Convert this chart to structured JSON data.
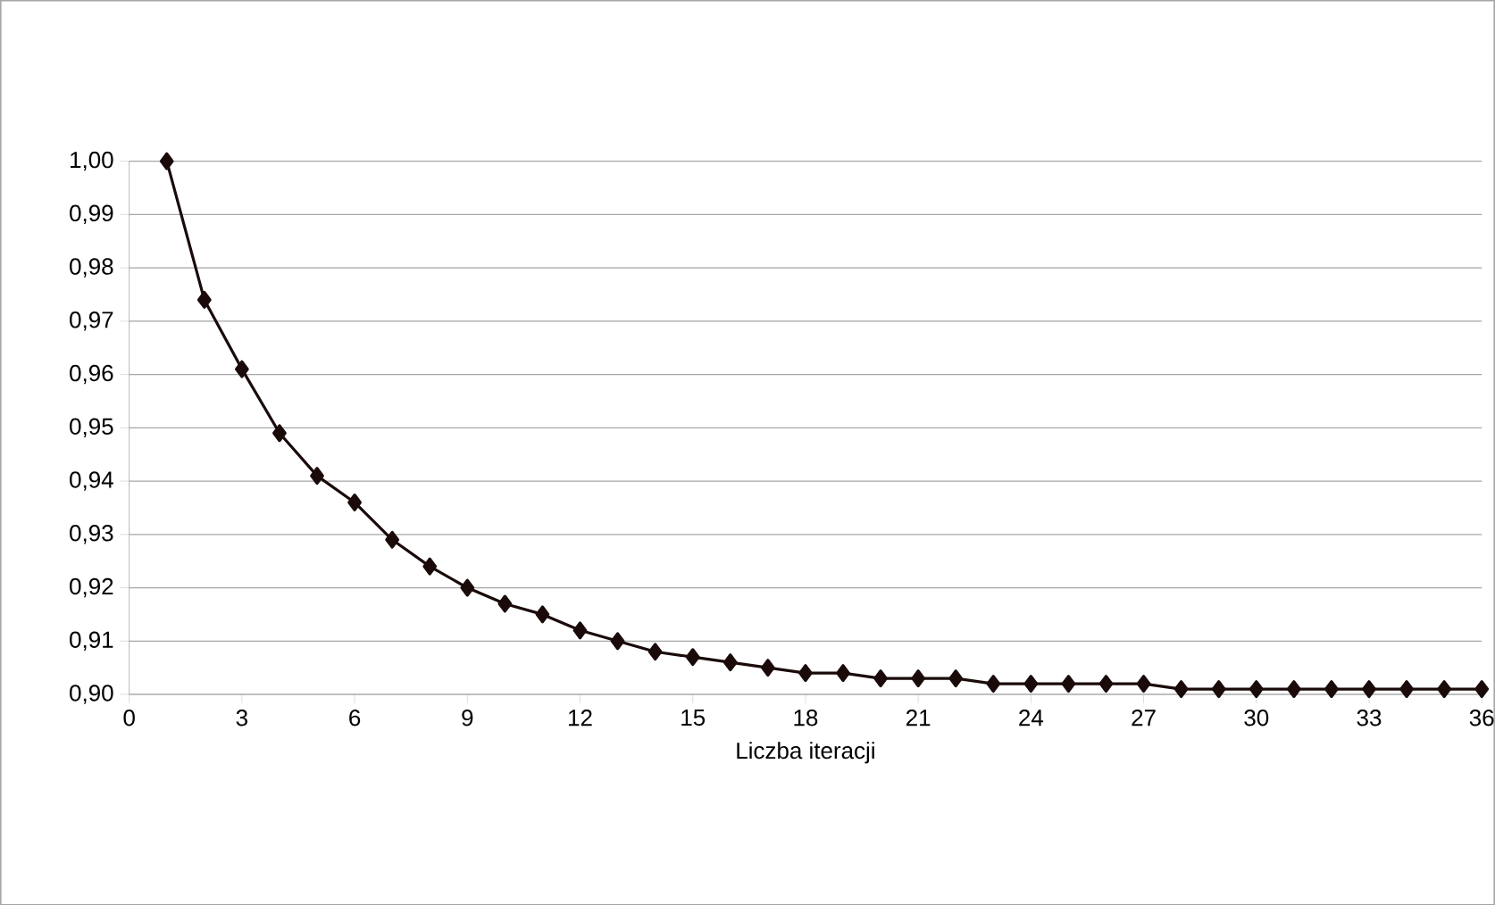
{
  "chart_data": {
    "type": "line",
    "xlabel": "Liczba iteracji",
    "x": [
      1,
      2,
      3,
      4,
      5,
      6,
      7,
      8,
      9,
      10,
      11,
      12,
      13,
      14,
      15,
      16,
      17,
      18,
      19,
      20,
      21,
      22,
      23,
      24,
      25,
      26,
      27,
      28,
      29,
      30,
      31,
      32,
      33,
      34,
      35,
      36
    ],
    "series": [
      {
        "color": "#1a0a0a",
        "values": [
          1.0,
          0.974,
          0.961,
          0.949,
          0.941,
          0.936,
          0.929,
          0.924,
          0.92,
          0.917,
          0.915,
          0.912,
          0.91,
          0.908,
          0.907,
          0.906,
          0.905,
          0.904,
          0.904,
          0.903,
          0.903,
          0.903,
          0.902,
          0.902,
          0.902,
          0.902,
          0.902,
          0.901,
          0.901,
          0.901,
          0.901,
          0.901,
          0.901,
          0.901,
          0.901,
          0.901
        ]
      }
    ],
    "xlim": [
      0,
      36
    ],
    "ylim": [
      0.9,
      1.0
    ],
    "xticks": [
      0,
      3,
      6,
      9,
      12,
      15,
      18,
      21,
      24,
      27,
      30,
      33,
      36
    ],
    "yticks": [
      {
        "value": 0.9,
        "label": "0,90"
      },
      {
        "value": 0.91,
        "label": "0,91"
      },
      {
        "value": 0.92,
        "label": "0,92"
      },
      {
        "value": 0.93,
        "label": "0,93"
      },
      {
        "value": 0.94,
        "label": "0,94"
      },
      {
        "value": 0.95,
        "label": "0,95"
      },
      {
        "value": 0.96,
        "label": "0,96"
      },
      {
        "value": 0.97,
        "label": "0,97"
      },
      {
        "value": 0.98,
        "label": "0,98"
      },
      {
        "value": 0.99,
        "label": "0,99"
      },
      {
        "value": 1.0,
        "label": "1,00"
      }
    ],
    "grid": "y",
    "marker": "diamond",
    "line_style": "solid"
  }
}
